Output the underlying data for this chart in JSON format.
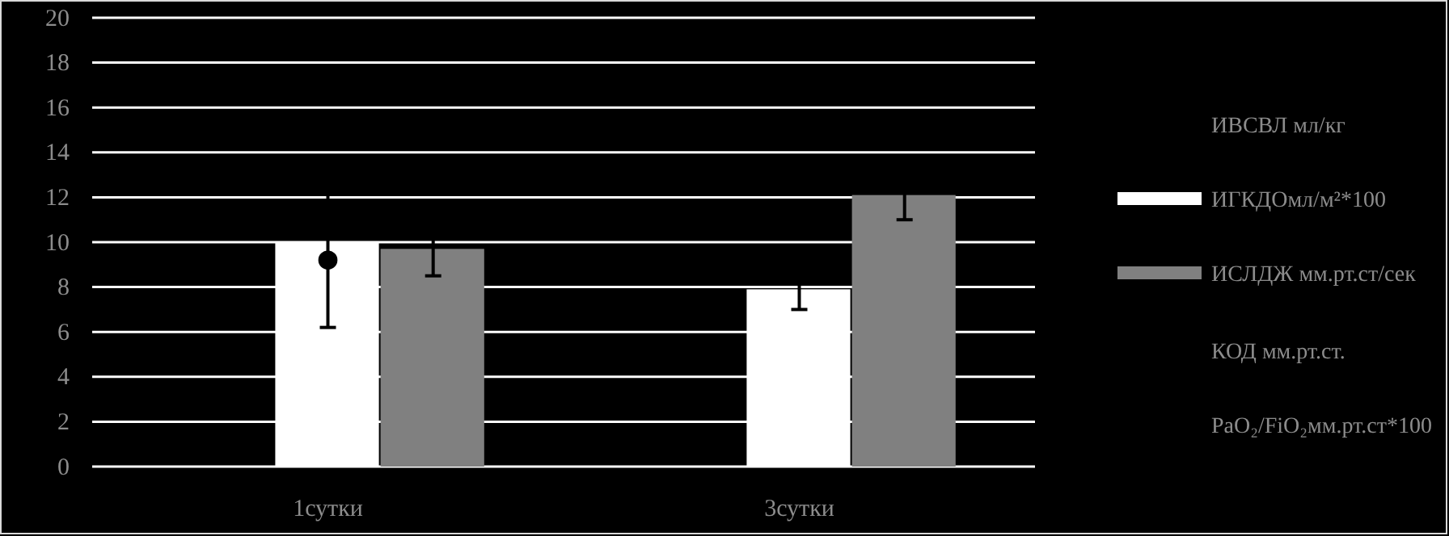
{
  "chart_data": {
    "type": "bar",
    "categories": [
      "1сутки",
      "3сутки"
    ],
    "series": [
      {
        "name": "ИГКДОмл/м²*100",
        "color": "#ffffff",
        "values": [
          10,
          7.9
        ],
        "errors": [
          3.8,
          0.9
        ]
      },
      {
        "name": "ИСЛДЖ мм.рт.ст/сек",
        "color": "#808080",
        "values": [
          9.7,
          12.1
        ],
        "errors": [
          1.2,
          1.1
        ]
      },
      {
        "type": "line",
        "color": "#000000",
        "values": [
          9.2,
          null
        ],
        "marker": "circle"
      }
    ],
    "annotations": [
      "ИВСВЛ мл/кг",
      "КОД мм.рт.ст.",
      "PaO₂/FiO₂мм.рт.ст*100"
    ],
    "ylim": [
      0,
      20
    ],
    "yticks": [
      0,
      2,
      4,
      6,
      8,
      10,
      12,
      14,
      16,
      18,
      20
    ],
    "grid": "y",
    "legend": "right"
  }
}
